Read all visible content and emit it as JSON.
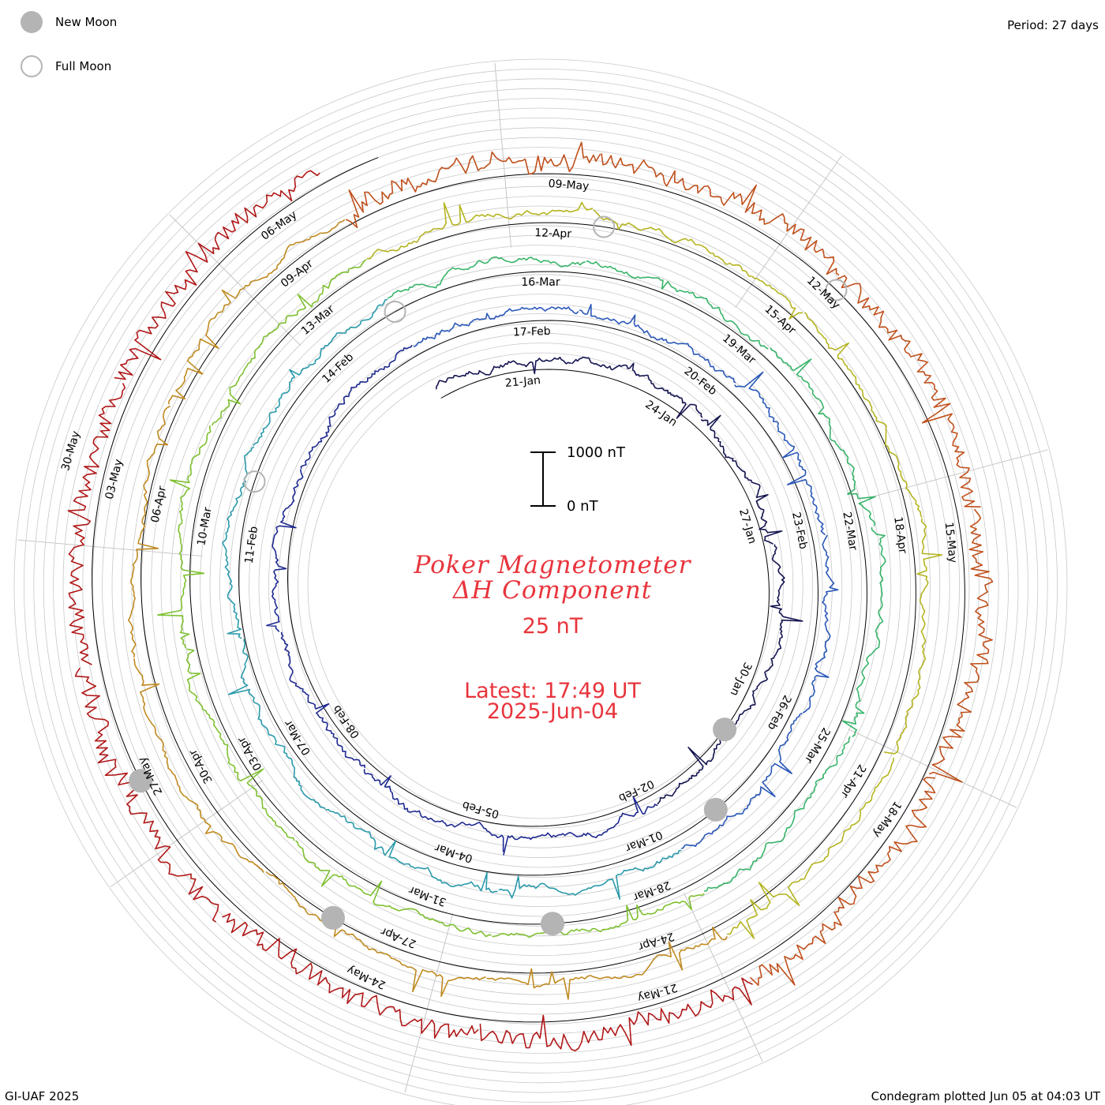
{
  "legend": {
    "new_moon_label": "New Moon",
    "full_moon_label": "Full Moon",
    "new_moon_color": "#b4b4b4",
    "full_moon_color": "#b4b4b4"
  },
  "period_label": "Period: 27 days",
  "footer": {
    "credit": "GI-UAF 2025",
    "plotted": "Condegram plotted Jun 05 at 04:03 UT"
  },
  "center": {
    "title_line1": "Poker Magnetometer",
    "title_line2": "ΔH Component",
    "scale_value": "25 nT",
    "latest": "Latest: 17:49 UT",
    "date": "2025-Jun-04",
    "text_color": "#e8343c"
  },
  "scale_bar": {
    "top_label": "1000 nT",
    "bottom_label": "0 nT"
  },
  "chart_data": {
    "type": "line",
    "title": "Poker Magnetometer ΔH Component",
    "subtitle": "25 nT",
    "period_days": 27,
    "date_labels": [
      {
        "label": "21-Jan",
        "turn": 0,
        "deg": 95
      },
      {
        "label": "24-Jan",
        "turn": 0,
        "deg": 55
      },
      {
        "label": "27-Jan",
        "turn": 0,
        "deg": 16
      },
      {
        "label": "30-Jan",
        "turn": 0,
        "deg": -25
      },
      {
        "label": "02-Feb",
        "turn": 0,
        "deg": -65
      },
      {
        "label": "05-Feb",
        "turn": 0,
        "deg": -105
      },
      {
        "label": "08-Feb",
        "turn": 0,
        "deg": -145
      },
      {
        "label": "11-Feb",
        "turn": 1,
        "deg": 172
      },
      {
        "label": "14-Feb",
        "turn": 1,
        "deg": 133
      },
      {
        "label": "17-Feb",
        "turn": 1,
        "deg": 92
      },
      {
        "label": "20-Feb",
        "turn": 1,
        "deg": 52
      },
      {
        "label": "23-Feb",
        "turn": 1,
        "deg": 12
      },
      {
        "label": "26-Feb",
        "turn": 1,
        "deg": -28
      },
      {
        "label": "01-Mar",
        "turn": 1,
        "deg": -68
      },
      {
        "label": "04-Mar",
        "turn": 1,
        "deg": -108
      },
      {
        "label": "07-Mar",
        "turn": 1,
        "deg": -148
      },
      {
        "label": "10-Mar",
        "turn": 2,
        "deg": 170
      },
      {
        "label": "13-Mar",
        "turn": 2,
        "deg": 130
      },
      {
        "label": "16-Mar",
        "turn": 2,
        "deg": 90
      },
      {
        "label": "19-Mar",
        "turn": 2,
        "deg": 50
      },
      {
        "label": "22-Mar",
        "turn": 2,
        "deg": 10
      },
      {
        "label": "25-Mar",
        "turn": 2,
        "deg": -30
      },
      {
        "label": "28-Mar",
        "turn": 2,
        "deg": -70
      },
      {
        "label": "31-Mar",
        "turn": 2,
        "deg": -110
      },
      {
        "label": "03-Apr",
        "turn": 2,
        "deg": -150
      },
      {
        "label": "06-Apr",
        "turn": 3,
        "deg": 168
      },
      {
        "label": "09-Apr",
        "turn": 3,
        "deg": 128
      },
      {
        "label": "12-Apr",
        "turn": 3,
        "deg": 88
      },
      {
        "label": "15-Apr",
        "turn": 3,
        "deg": 48
      },
      {
        "label": "18-Apr",
        "turn": 3,
        "deg": 8
      },
      {
        "label": "21-Apr",
        "turn": 3,
        "deg": -32
      },
      {
        "label": "24-Apr",
        "turn": 3,
        "deg": -72
      },
      {
        "label": "27-Apr",
        "turn": 3,
        "deg": -112
      },
      {
        "label": "30-Apr",
        "turn": 3,
        "deg": -152
      },
      {
        "label": "03-May",
        "turn": 4,
        "deg": 166
      },
      {
        "label": "06-May",
        "turn": 4,
        "deg": 126
      },
      {
        "label": "09-May",
        "turn": 4,
        "deg": 86
      },
      {
        "label": "12-May",
        "turn": 4,
        "deg": 46
      },
      {
        "label": "15-May",
        "turn": 4,
        "deg": 6
      },
      {
        "label": "18-May",
        "turn": 4,
        "deg": -34
      },
      {
        "label": "21-May",
        "turn": 4,
        "deg": -74
      },
      {
        "label": "24-May",
        "turn": 4,
        "deg": -114
      },
      {
        "label": "27-May",
        "turn": 4,
        "deg": -154
      },
      {
        "label": "30-May",
        "turn": 5,
        "deg": 164
      }
    ],
    "series": [
      {
        "start": "2025-Jan-18",
        "end": "2025-Feb-14",
        "color": "#141450"
      },
      {
        "start": "2025-Feb-14",
        "end": "2025-Mar-13",
        "color": "#2a3aa8"
      },
      {
        "start": "2025-Mar-13",
        "end": "2025-Apr-09",
        "color": "#2a9aaa"
      },
      {
        "start": "2025-Apr-09",
        "end": "2025-May-06",
        "color": "#3cb84a"
      },
      {
        "start": "2025-May-06",
        "end": "2025-Jun-02",
        "color": "#a8b420"
      },
      {
        "start": "2025-Jun-02",
        "end": "2025-Jun-04",
        "color": "#b01818"
      }
    ],
    "gradient_colors": [
      "#141450",
      "#1e2a90",
      "#2a58b8",
      "#2a9aaa",
      "#38b46a",
      "#7ec030",
      "#b4b420",
      "#c08a20",
      "#c0501c",
      "#b01818"
    ],
    "new_moons": [
      {
        "turn": 0,
        "deg": -38
      },
      {
        "turn": 1,
        "deg": -52
      },
      {
        "turn": 2,
        "deg": -88
      },
      {
        "turn": 3,
        "deg": -122
      },
      {
        "turn": 4,
        "deg": -154
      }
    ],
    "full_moons": [
      {
        "turn": 1,
        "deg": 160
      },
      {
        "turn": 2,
        "deg": 118
      },
      {
        "turn": 3,
        "deg": 80
      },
      {
        "turn": 4,
        "deg": 45
      }
    ],
    "scale_bar_nT": [
      0,
      1000
    ],
    "latest_ut": "17:49 UT",
    "latest_date": "2025-Jun-04"
  }
}
